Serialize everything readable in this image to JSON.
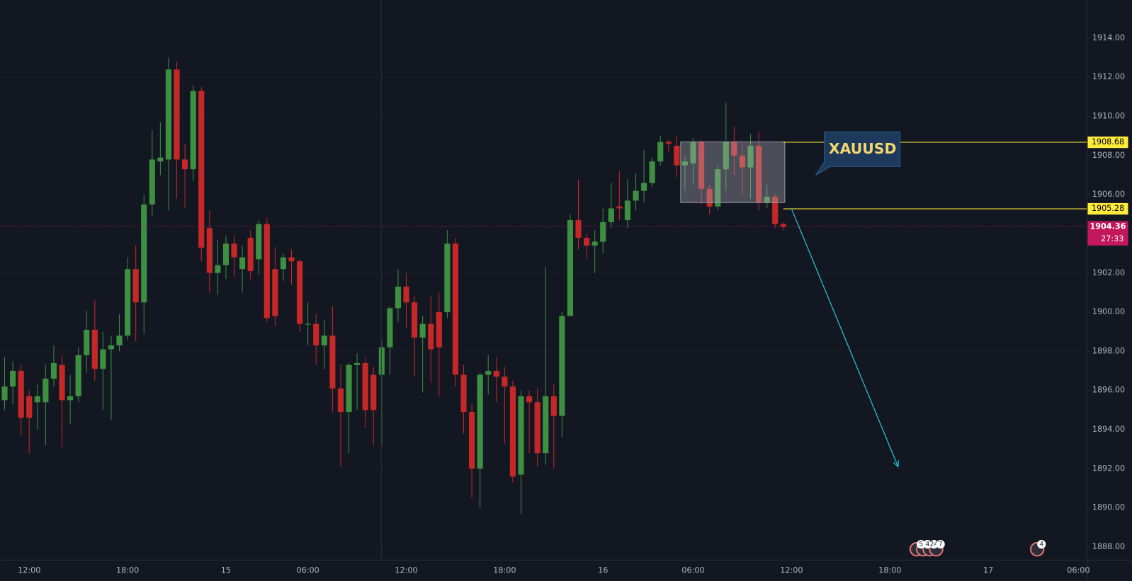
{
  "chart_data": {
    "type": "candlestick",
    "up_color": "#3d8f41",
    "down_color": "#c62828",
    "categories": [
      null,
      null,
      null,
      "12:00",
      null,
      null,
      null,
      null,
      null,
      null,
      null,
      null,
      null,
      null,
      null,
      "18:00",
      null,
      null,
      null,
      null,
      null,
      null,
      null,
      null,
      null,
      null,
      null,
      "15",
      null,
      null,
      null,
      null,
      null,
      null,
      null,
      null,
      null,
      "06:00",
      null,
      null,
      null,
      null,
      null,
      null,
      null,
      null,
      null,
      null,
      null,
      "12:00",
      null,
      null,
      null,
      null,
      null,
      null,
      null,
      null,
      null,
      null,
      null,
      "18:00",
      null,
      null,
      null,
      null,
      null,
      null,
      null,
      null,
      null,
      null,
      null,
      "16",
      null,
      null,
      null,
      null,
      null,
      null,
      null,
      null,
      null,
      null,
      "06:00",
      null,
      null,
      null,
      null,
      null,
      null,
      null,
      null,
      null,
      null,
      null,
      "12:00",
      null,
      null,
      null,
      null,
      null,
      null,
      null,
      null,
      null,
      null,
      null,
      "18:00",
      null,
      null,
      null,
      null,
      null,
      null,
      null,
      null,
      null,
      null,
      null,
      "17",
      null,
      null,
      null,
      null,
      null,
      null,
      null,
      null,
      null,
      null,
      "06:00",
      null
    ],
    "open": [
      1895.5,
      1896.2,
      1897.0,
      1895.7,
      1895.4,
      1895.4,
      1896.6,
      1897.3,
      1895.5,
      1895.7,
      1897.8,
      1899.1,
      1897.1,
      1898.1,
      1898.3,
      1898.8,
      1902.2,
      1900.5,
      1905.5,
      1907.7,
      1907.8,
      1912.4,
      1907.8,
      1907.3,
      1911.3,
      1904.3,
      1902.0,
      1902.4,
      1903.5,
      1902.2,
      1903.8,
      1902.7,
      1904.5,
      1902.2,
      1902.2,
      1902.8,
      1902.6,
      1899.4,
      1899.4,
      1898.3,
      1898.8,
      1896.1,
      1894.9,
      1897.3,
      1897.4,
      1896.8,
      1896.8,
      1898.2,
      1900.2,
      1901.3,
      1900.5,
      1898.7,
      1899.4,
      1900.0,
      1900.0,
      1903.5,
      1896.8,
      1894.9,
      1892.0,
      1896.8,
      1897.0,
      1896.7,
      1896.2,
      1891.7,
      1895.7,
      1895.4,
      1892.8,
      1895.7,
      1894.7,
      1899.8,
      1904.7,
      1903.8,
      1903.4,
      1903.6,
      1904.6,
      1905.4,
      1904.7,
      1905.7,
      1906.2,
      1906.6,
      1907.7,
      1908.7,
      1908.5,
      1907.5,
      1907.6,
      1908.7,
      1906.3,
      1905.4,
      1907.3,
      1908.7,
      1908.0,
      1907.4,
      1908.5,
      1905.6,
      1905.9,
      1904.5,
      null,
      null,
      null,
      null,
      null,
      null,
      null,
      null,
      null,
      null,
      null,
      null,
      null,
      null,
      null,
      null,
      null,
      null,
      null,
      null,
      null,
      null,
      null,
      null,
      null,
      null,
      null,
      null,
      null,
      null,
      null,
      null,
      null,
      null,
      null,
      null,
      null
    ],
    "high": [
      1897.7,
      1897.5,
      1897.3,
      1896.0,
      1896.3,
      1897.3,
      1898.3,
      1897.8,
      1896.8,
      1898.2,
      1900.1,
      1900.6,
      1899.0,
      1898.8,
      1899.9,
      1902.8,
      1903.4,
      1906.0,
      1909.3,
      1909.7,
      1913.0,
      1912.8,
      1908.6,
      1911.6,
      1911.5,
      1905.2,
      1903.7,
      1903.9,
      1903.9,
      1903.4,
      1904.2,
      1904.7,
      1904.8,
      1903.3,
      1903.0,
      1903.2,
      1902.7,
      1900.5,
      1899.9,
      1899.6,
      1900.3,
      1897.3,
      1897.4,
      1897.9,
      1897.7,
      1897.2,
      1898.6,
      1900.3,
      1902.2,
      1902.0,
      1900.8,
      1899.8,
      1900.8,
      1901.0,
      1904.2,
      1903.8,
      1897.3,
      1895.3,
      1896.9,
      1897.8,
      1897.7,
      1897.2,
      1896.5,
      1896.0,
      1896.0,
      1896.1,
      1902.3,
      1896.3,
      1900.0,
      1905.0,
      1906.8,
      1904.0,
      1904.2,
      1905.3,
      1906.6,
      1907.2,
      1906.8,
      1907.1,
      1908.3,
      1907.9,
      1909.0,
      1908.8,
      1909.0,
      1908.0,
      1908.9,
      1908.8,
      1906.5,
      1907.5,
      1910.7,
      1909.5,
      1908.6,
      1909.1,
      1909.2,
      1906.5,
      1906.0,
      1904.6,
      null,
      null,
      null,
      null,
      null,
      null,
      null,
      null,
      null,
      null,
      null,
      null,
      null,
      null,
      null,
      null,
      null,
      null,
      null,
      null,
      null,
      null,
      null,
      null,
      null,
      null,
      null,
      null,
      null,
      null,
      null,
      null,
      null,
      null,
      null,
      null,
      null
    ],
    "low": [
      1895.0,
      1895.3,
      1893.7,
      1892.8,
      1894.0,
      1893.2,
      1896.2,
      1893.1,
      1894.3,
      1895.4,
      1896.9,
      1896.5,
      1895.0,
      1894.5,
      1898.0,
      1898.6,
      1898.5,
      1898.9,
      1904.9,
      1907.0,
      1905.2,
      1905.8,
      1905.3,
      1906.7,
      1902.6,
      1901.0,
      1900.9,
      1901.7,
      1901.8,
      1901.0,
      1901.7,
      1901.9,
      1899.5,
      1899.3,
      1901.6,
      1901.4,
      1899.0,
      1898.3,
      1897.3,
      1897.1,
      1894.9,
      1892.1,
      1892.8,
      1895.0,
      1894.1,
      1893.2,
      1893.2,
      1896.8,
      1899.5,
      1899.2,
      1896.7,
      1895.9,
      1896.4,
      1895.7,
      1899.7,
      1896.2,
      1893.8,
      1890.5,
      1890.0,
      1895.8,
      1895.4,
      1893.3,
      1891.3,
      1889.7,
      1892.8,
      1892.1,
      1892.2,
      1892.0,
      1893.6,
      1899.8,
      1903.2,
      1902.7,
      1902.0,
      1903.0,
      1904.3,
      1904.7,
      1904.3,
      1905.2,
      1905.6,
      1906.4,
      1907.5,
      1908.2,
      1906.9,
      1906.2,
      1906.5,
      1905.5,
      1905.0,
      1905.2,
      1906.2,
      1907.0,
      1906.0,
      1905.8,
      1905.2,
      1905.3,
      1904.3,
      1904.2,
      null,
      null,
      null,
      null,
      null,
      null,
      null,
      null,
      null,
      null,
      null,
      null,
      null,
      null,
      null,
      null,
      null,
      null,
      null,
      null,
      null,
      null,
      null,
      null,
      null,
      null,
      null,
      null,
      null,
      null,
      null,
      null,
      null,
      null,
      null,
      null,
      null
    ],
    "close": [
      1896.2,
      1897.0,
      1894.6,
      1894.6,
      1895.7,
      1896.6,
      1897.4,
      1895.5,
      1895.7,
      1897.8,
      1899.1,
      1897.1,
      1898.1,
      1898.3,
      1898.8,
      1902.2,
      1900.5,
      1905.5,
      1907.8,
      1907.9,
      1912.4,
      1907.8,
      1907.3,
      1911.3,
      1903.3,
      1902.0,
      1902.4,
      1903.5,
      1902.8,
      1902.8,
      1902.1,
      1904.5,
      1899.7,
      1899.8,
      1902.8,
      1902.6,
      1899.4,
      1899.4,
      1898.3,
      1898.8,
      1896.1,
      1894.9,
      1897.3,
      1897.4,
      1895.0,
      1895.0,
      1898.2,
      1900.2,
      1901.3,
      1900.5,
      1898.7,
      1899.4,
      1898.1,
      1898.2,
      1903.5,
      1896.8,
      1894.9,
      1892.0,
      1896.8,
      1897.0,
      1896.7,
      1896.2,
      1891.6,
      1895.7,
      1895.4,
      1892.8,
      1895.7,
      1894.7,
      1899.8,
      1904.7,
      1903.8,
      1903.4,
      1903.6,
      1904.6,
      1905.3,
      1905.3,
      1905.7,
      1906.2,
      1906.6,
      1907.7,
      1908.7,
      1908.6,
      1907.5,
      1907.7,
      1908.7,
      1906.3,
      1905.4,
      1907.3,
      1908.7,
      1908.0,
      1907.4,
      1908.5,
      1905.6,
      1905.9,
      1904.5,
      1904.36,
      null,
      null,
      null,
      null,
      null,
      null,
      null,
      null,
      null,
      null,
      null,
      null,
      null,
      null,
      null,
      null,
      null,
      null,
      null,
      null,
      null,
      null,
      null,
      null,
      null,
      null,
      null,
      null,
      null,
      null,
      null,
      null,
      null,
      null,
      null,
      null,
      null
    ],
    "ylim": [
      1887.33,
      1915.95
    ],
    "yticks": [
      {
        "value": 1888,
        "label": "1888.00"
      },
      {
        "value": 1890,
        "label": "1890.00"
      },
      {
        "value": 1892,
        "label": "1892.00"
      },
      {
        "value": 1894,
        "label": "1894.00"
      },
      {
        "value": 1896,
        "label": "1896.00"
      },
      {
        "value": 1898,
        "label": "1898.00"
      },
      {
        "value": 1900,
        "label": "1900.00"
      },
      {
        "value": 1902,
        "label": "1902.00"
      },
      {
        "value": 1904,
        "label": "1904.00"
      },
      {
        "value": 1906,
        "label": "1906.00"
      },
      {
        "value": 1908,
        "label": "1908.00"
      },
      {
        "value": 1910,
        "label": "1910.00"
      },
      {
        "value": 1912,
        "label": "1912.00"
      },
      {
        "value": 1914,
        "label": "1914.00"
      }
    ],
    "levels": [
      {
        "value": 1908.68,
        "color": "#ffeb3b"
      },
      {
        "value": 1905.28,
        "color": "#ffeb3b"
      }
    ],
    "box": {
      "from": 83,
      "to": 95,
      "top": 1908.7,
      "bottom": 1905.6
    },
    "arrow": {
      "x": [
        96,
        109
      ],
      "y": [
        1905.28,
        1892.1
      ],
      "color": "#26c6da"
    },
    "current_price": 1904.36,
    "countdown": "27:33",
    "annotation": "XAUUSD",
    "events": [
      {
        "labels": [
          "5",
          "4",
          "24",
          "7"
        ]
      },
      {
        "labels": [
          "4"
        ]
      }
    ]
  }
}
